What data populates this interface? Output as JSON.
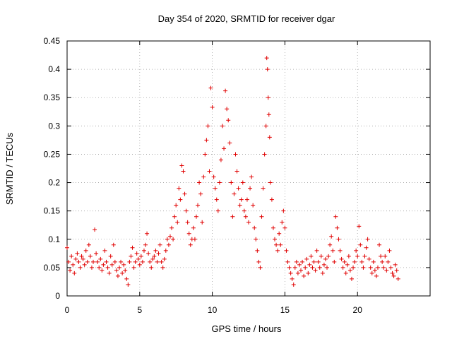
{
  "chart_data": {
    "type": "scatter",
    "title": "Day 354 of 2020, SRMTID for receiver dgar",
    "xlabel": "GPS time / hours",
    "ylabel": "SRMTID / TECUs",
    "xlim": [
      0,
      25
    ],
    "ylim": [
      0,
      0.45
    ],
    "xticks": [
      0,
      5,
      10,
      15,
      20
    ],
    "xtick_labels": [
      "0",
      "5",
      "10",
      "15",
      "20"
    ],
    "yticks": [
      0,
      0.05,
      0.1,
      0.15,
      0.2,
      0.25,
      0.3,
      0.35,
      0.4,
      0.45
    ],
    "ytick_labels": [
      "0",
      "0.05",
      "0.1",
      "0.15",
      "0.2",
      "0.25",
      "0.3",
      "0.35",
      "0.4",
      "0.45"
    ],
    "grid": true,
    "marker": "+",
    "color": "#e00000",
    "series": [
      {
        "name": "SRMTID",
        "points": [
          [
            0.0,
            0.085
          ],
          [
            0.1,
            0.06
          ],
          [
            0.2,
            0.045
          ],
          [
            0.3,
            0.07
          ],
          [
            0.4,
            0.055
          ],
          [
            0.5,
            0.04
          ],
          [
            0.6,
            0.065
          ],
          [
            0.7,
            0.075
          ],
          [
            0.8,
            0.06
          ],
          [
            0.9,
            0.05
          ],
          [
            1.0,
            0.07
          ],
          [
            1.1,
            0.065
          ],
          [
            1.2,
            0.055
          ],
          [
            1.3,
            0.08
          ],
          [
            1.4,
            0.06
          ],
          [
            1.5,
            0.09
          ],
          [
            1.6,
            0.07
          ],
          [
            1.7,
            0.05
          ],
          [
            1.8,
            0.06
          ],
          [
            1.9,
            0.117
          ],
          [
            2.0,
            0.075
          ],
          [
            2.1,
            0.06
          ],
          [
            2.2,
            0.05
          ],
          [
            2.3,
            0.065
          ],
          [
            2.4,
            0.045
          ],
          [
            2.5,
            0.055
          ],
          [
            2.6,
            0.08
          ],
          [
            2.7,
            0.06
          ],
          [
            2.8,
            0.05
          ],
          [
            2.9,
            0.04
          ],
          [
            3.0,
            0.07
          ],
          [
            3.1,
            0.055
          ],
          [
            3.2,
            0.09
          ],
          [
            3.3,
            0.06
          ],
          [
            3.4,
            0.045
          ],
          [
            3.5,
            0.035
          ],
          [
            3.6,
            0.05
          ],
          [
            3.7,
            0.06
          ],
          [
            3.8,
            0.04
          ],
          [
            3.9,
            0.055
          ],
          [
            4.0,
            0.045
          ],
          [
            4.1,
            0.03
          ],
          [
            4.2,
            0.02
          ],
          [
            4.3,
            0.06
          ],
          [
            4.4,
            0.07
          ],
          [
            4.5,
            0.085
          ],
          [
            4.6,
            0.05
          ],
          [
            4.7,
            0.06
          ],
          [
            4.8,
            0.075
          ],
          [
            4.9,
            0.065
          ],
          [
            5.0,
            0.055
          ],
          [
            5.1,
            0.07
          ],
          [
            5.2,
            0.06
          ],
          [
            5.3,
            0.08
          ],
          [
            5.4,
            0.09
          ],
          [
            5.5,
            0.11
          ],
          [
            5.6,
            0.075
          ],
          [
            5.7,
            0.06
          ],
          [
            5.8,
            0.05
          ],
          [
            5.9,
            0.065
          ],
          [
            6.0,
            0.07
          ],
          [
            6.1,
            0.08
          ],
          [
            6.2,
            0.06
          ],
          [
            6.3,
            0.075
          ],
          [
            6.4,
            0.09
          ],
          [
            6.5,
            0.06
          ],
          [
            6.6,
            0.05
          ],
          [
            6.7,
            0.065
          ],
          [
            6.8,
            0.08
          ],
          [
            6.9,
            0.1
          ],
          [
            7.0,
            0.09
          ],
          [
            7.1,
            0.105
          ],
          [
            7.2,
            0.12
          ],
          [
            7.3,
            0.1
          ],
          [
            7.4,
            0.14
          ],
          [
            7.5,
            0.16
          ],
          [
            7.6,
            0.13
          ],
          [
            7.7,
            0.19
          ],
          [
            7.8,
            0.17
          ],
          [
            7.9,
            0.23
          ],
          [
            8.0,
            0.22
          ],
          [
            8.1,
            0.18
          ],
          [
            8.2,
            0.15
          ],
          [
            8.3,
            0.13
          ],
          [
            8.4,
            0.11
          ],
          [
            8.5,
            0.09
          ],
          [
            8.6,
            0.1
          ],
          [
            8.7,
            0.12
          ],
          [
            8.8,
            0.1
          ],
          [
            8.9,
            0.14
          ],
          [
            9.0,
            0.16
          ],
          [
            9.1,
            0.2
          ],
          [
            9.2,
            0.18
          ],
          [
            9.3,
            0.13
          ],
          [
            9.4,
            0.21
          ],
          [
            9.5,
            0.25
          ],
          [
            9.6,
            0.275
          ],
          [
            9.7,
            0.3
          ],
          [
            9.8,
            0.22
          ],
          [
            9.9,
            0.367
          ],
          [
            10.0,
            0.333
          ],
          [
            10.1,
            0.21
          ],
          [
            10.2,
            0.19
          ],
          [
            10.3,
            0.17
          ],
          [
            10.4,
            0.15
          ],
          [
            10.5,
            0.2
          ],
          [
            10.6,
            0.24
          ],
          [
            10.7,
            0.3
          ],
          [
            10.8,
            0.26
          ],
          [
            10.9,
            0.362
          ],
          [
            11.0,
            0.33
          ],
          [
            11.1,
            0.31
          ],
          [
            11.2,
            0.27
          ],
          [
            11.3,
            0.2
          ],
          [
            11.4,
            0.14
          ],
          [
            11.5,
            0.18
          ],
          [
            11.6,
            0.25
          ],
          [
            11.7,
            0.22
          ],
          [
            11.8,
            0.19
          ],
          [
            11.9,
            0.16
          ],
          [
            12.0,
            0.17
          ],
          [
            12.1,
            0.2
          ],
          [
            12.2,
            0.15
          ],
          [
            12.3,
            0.14
          ],
          [
            12.4,
            0.17
          ],
          [
            12.5,
            0.13
          ],
          [
            12.6,
            0.19
          ],
          [
            12.7,
            0.21
          ],
          [
            12.8,
            0.16
          ],
          [
            12.9,
            0.12
          ],
          [
            13.0,
            0.1
          ],
          [
            13.1,
            0.08
          ],
          [
            13.2,
            0.06
          ],
          [
            13.3,
            0.05
          ],
          [
            13.4,
            0.14
          ],
          [
            13.5,
            0.19
          ],
          [
            13.6,
            0.25
          ],
          [
            13.7,
            0.3
          ],
          [
            13.75,
            0.42
          ],
          [
            13.8,
            0.4
          ],
          [
            13.85,
            0.35
          ],
          [
            13.9,
            0.32
          ],
          [
            13.95,
            0.28
          ],
          [
            14.0,
            0.2
          ],
          [
            14.1,
            0.17
          ],
          [
            14.2,
            0.12
          ],
          [
            14.3,
            0.1
          ],
          [
            14.4,
            0.09
          ],
          [
            14.5,
            0.08
          ],
          [
            14.6,
            0.11
          ],
          [
            14.7,
            0.09
          ],
          [
            14.8,
            0.13
          ],
          [
            14.9,
            0.15
          ],
          [
            15.0,
            0.12
          ],
          [
            15.1,
            0.08
          ],
          [
            15.2,
            0.06
          ],
          [
            15.3,
            0.05
          ],
          [
            15.4,
            0.04
          ],
          [
            15.5,
            0.03
          ],
          [
            15.6,
            0.02
          ],
          [
            15.7,
            0.05
          ],
          [
            15.8,
            0.06
          ],
          [
            15.9,
            0.04
          ],
          [
            16.0,
            0.055
          ],
          [
            16.1,
            0.045
          ],
          [
            16.2,
            0.06
          ],
          [
            16.3,
            0.035
          ],
          [
            16.4,
            0.05
          ],
          [
            16.5,
            0.065
          ],
          [
            16.6,
            0.04
          ],
          [
            16.7,
            0.055
          ],
          [
            16.8,
            0.07
          ],
          [
            16.9,
            0.05
          ],
          [
            17.0,
            0.06
          ],
          [
            17.1,
            0.045
          ],
          [
            17.2,
            0.08
          ],
          [
            17.3,
            0.06
          ],
          [
            17.4,
            0.05
          ],
          [
            17.5,
            0.07
          ],
          [
            17.6,
            0.04
          ],
          [
            17.7,
            0.055
          ],
          [
            17.8,
            0.065
          ],
          [
            17.9,
            0.05
          ],
          [
            18.0,
            0.07
          ],
          [
            18.1,
            0.09
          ],
          [
            18.2,
            0.105
          ],
          [
            18.3,
            0.08
          ],
          [
            18.4,
            0.06
          ],
          [
            18.5,
            0.14
          ],
          [
            18.6,
            0.12
          ],
          [
            18.7,
            0.1
          ],
          [
            18.8,
            0.08
          ],
          [
            18.9,
            0.065
          ],
          [
            19.0,
            0.05
          ],
          [
            19.1,
            0.06
          ],
          [
            19.2,
            0.04
          ],
          [
            19.3,
            0.055
          ],
          [
            19.4,
            0.07
          ],
          [
            19.5,
            0.045
          ],
          [
            19.6,
            0.03
          ],
          [
            19.7,
            0.05
          ],
          [
            19.8,
            0.06
          ],
          [
            19.9,
            0.08
          ],
          [
            20.0,
            0.07
          ],
          [
            20.1,
            0.123
          ],
          [
            20.2,
            0.09
          ],
          [
            20.3,
            0.06
          ],
          [
            20.4,
            0.05
          ],
          [
            20.5,
            0.07
          ],
          [
            20.6,
            0.085
          ],
          [
            20.7,
            0.1
          ],
          [
            20.8,
            0.065
          ],
          [
            20.9,
            0.05
          ],
          [
            21.0,
            0.04
          ],
          [
            21.1,
            0.06
          ],
          [
            21.2,
            0.045
          ],
          [
            21.3,
            0.035
          ],
          [
            21.4,
            0.05
          ],
          [
            21.5,
            0.09
          ],
          [
            21.6,
            0.07
          ],
          [
            21.7,
            0.06
          ],
          [
            21.8,
            0.05
          ],
          [
            21.9,
            0.07
          ],
          [
            22.0,
            0.045
          ],
          [
            22.1,
            0.06
          ],
          [
            22.2,
            0.08
          ],
          [
            22.3,
            0.05
          ],
          [
            22.4,
            0.04
          ],
          [
            22.5,
            0.035
          ],
          [
            22.6,
            0.055
          ],
          [
            22.7,
            0.045
          ],
          [
            22.8,
            0.03
          ]
        ]
      }
    ]
  }
}
